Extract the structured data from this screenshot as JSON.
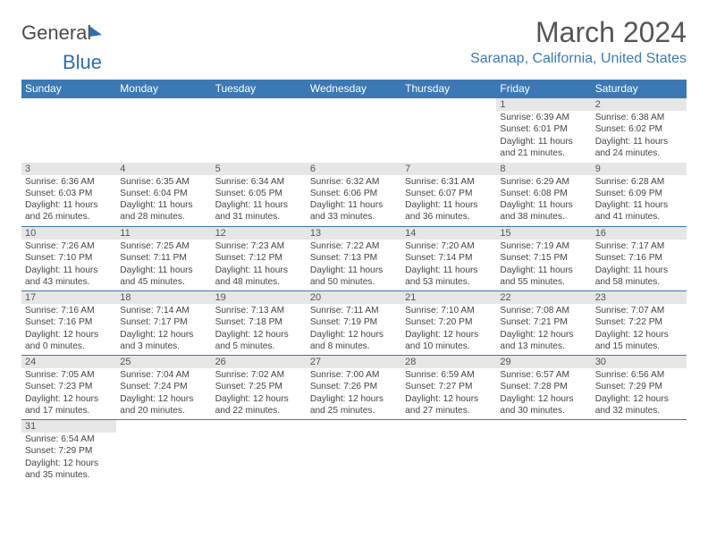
{
  "brand": {
    "part1": "General",
    "part2": "Blue"
  },
  "title": "March 2024",
  "location": "Saranap, California, United States",
  "colors": {
    "header_bg": "#3c79b4",
    "daynum_bg": "#e6e6e6",
    "brand_blue": "#2e6fb0"
  },
  "weekday_headers": [
    "Sunday",
    "Monday",
    "Tuesday",
    "Wednesday",
    "Thursday",
    "Friday",
    "Saturday"
  ],
  "weeks": [
    [
      {
        "blank": true
      },
      {
        "blank": true
      },
      {
        "blank": true
      },
      {
        "blank": true
      },
      {
        "blank": true
      },
      {
        "day": "1",
        "sunrise": "Sunrise: 6:39 AM",
        "sunset": "Sunset: 6:01 PM",
        "day1": "Daylight: 11 hours",
        "day2": "and 21 minutes."
      },
      {
        "day": "2",
        "sunrise": "Sunrise: 6:38 AM",
        "sunset": "Sunset: 6:02 PM",
        "day1": "Daylight: 11 hours",
        "day2": "and 24 minutes."
      }
    ],
    [
      {
        "day": "3",
        "sunrise": "Sunrise: 6:36 AM",
        "sunset": "Sunset: 6:03 PM",
        "day1": "Daylight: 11 hours",
        "day2": "and 26 minutes."
      },
      {
        "day": "4",
        "sunrise": "Sunrise: 6:35 AM",
        "sunset": "Sunset: 6:04 PM",
        "day1": "Daylight: 11 hours",
        "day2": "and 28 minutes."
      },
      {
        "day": "5",
        "sunrise": "Sunrise: 6:34 AM",
        "sunset": "Sunset: 6:05 PM",
        "day1": "Daylight: 11 hours",
        "day2": "and 31 minutes."
      },
      {
        "day": "6",
        "sunrise": "Sunrise: 6:32 AM",
        "sunset": "Sunset: 6:06 PM",
        "day1": "Daylight: 11 hours",
        "day2": "and 33 minutes."
      },
      {
        "day": "7",
        "sunrise": "Sunrise: 6:31 AM",
        "sunset": "Sunset: 6:07 PM",
        "day1": "Daylight: 11 hours",
        "day2": "and 36 minutes."
      },
      {
        "day": "8",
        "sunrise": "Sunrise: 6:29 AM",
        "sunset": "Sunset: 6:08 PM",
        "day1": "Daylight: 11 hours",
        "day2": "and 38 minutes."
      },
      {
        "day": "9",
        "sunrise": "Sunrise: 6:28 AM",
        "sunset": "Sunset: 6:09 PM",
        "day1": "Daylight: 11 hours",
        "day2": "and 41 minutes."
      }
    ],
    [
      {
        "day": "10",
        "sunrise": "Sunrise: 7:26 AM",
        "sunset": "Sunset: 7:10 PM",
        "day1": "Daylight: 11 hours",
        "day2": "and 43 minutes."
      },
      {
        "day": "11",
        "sunrise": "Sunrise: 7:25 AM",
        "sunset": "Sunset: 7:11 PM",
        "day1": "Daylight: 11 hours",
        "day2": "and 45 minutes."
      },
      {
        "day": "12",
        "sunrise": "Sunrise: 7:23 AM",
        "sunset": "Sunset: 7:12 PM",
        "day1": "Daylight: 11 hours",
        "day2": "and 48 minutes."
      },
      {
        "day": "13",
        "sunrise": "Sunrise: 7:22 AM",
        "sunset": "Sunset: 7:13 PM",
        "day1": "Daylight: 11 hours",
        "day2": "and 50 minutes."
      },
      {
        "day": "14",
        "sunrise": "Sunrise: 7:20 AM",
        "sunset": "Sunset: 7:14 PM",
        "day1": "Daylight: 11 hours",
        "day2": "and 53 minutes."
      },
      {
        "day": "15",
        "sunrise": "Sunrise: 7:19 AM",
        "sunset": "Sunset: 7:15 PM",
        "day1": "Daylight: 11 hours",
        "day2": "and 55 minutes."
      },
      {
        "day": "16",
        "sunrise": "Sunrise: 7:17 AM",
        "sunset": "Sunset: 7:16 PM",
        "day1": "Daylight: 11 hours",
        "day2": "and 58 minutes."
      }
    ],
    [
      {
        "day": "17",
        "sunrise": "Sunrise: 7:16 AM",
        "sunset": "Sunset: 7:16 PM",
        "day1": "Daylight: 12 hours",
        "day2": "and 0 minutes."
      },
      {
        "day": "18",
        "sunrise": "Sunrise: 7:14 AM",
        "sunset": "Sunset: 7:17 PM",
        "day1": "Daylight: 12 hours",
        "day2": "and 3 minutes."
      },
      {
        "day": "19",
        "sunrise": "Sunrise: 7:13 AM",
        "sunset": "Sunset: 7:18 PM",
        "day1": "Daylight: 12 hours",
        "day2": "and 5 minutes."
      },
      {
        "day": "20",
        "sunrise": "Sunrise: 7:11 AM",
        "sunset": "Sunset: 7:19 PM",
        "day1": "Daylight: 12 hours",
        "day2": "and 8 minutes."
      },
      {
        "day": "21",
        "sunrise": "Sunrise: 7:10 AM",
        "sunset": "Sunset: 7:20 PM",
        "day1": "Daylight: 12 hours",
        "day2": "and 10 minutes."
      },
      {
        "day": "22",
        "sunrise": "Sunrise: 7:08 AM",
        "sunset": "Sunset: 7:21 PM",
        "day1": "Daylight: 12 hours",
        "day2": "and 13 minutes."
      },
      {
        "day": "23",
        "sunrise": "Sunrise: 7:07 AM",
        "sunset": "Sunset: 7:22 PM",
        "day1": "Daylight: 12 hours",
        "day2": "and 15 minutes."
      }
    ],
    [
      {
        "day": "24",
        "sunrise": "Sunrise: 7:05 AM",
        "sunset": "Sunset: 7:23 PM",
        "day1": "Daylight: 12 hours",
        "day2": "and 17 minutes."
      },
      {
        "day": "25",
        "sunrise": "Sunrise: 7:04 AM",
        "sunset": "Sunset: 7:24 PM",
        "day1": "Daylight: 12 hours",
        "day2": "and 20 minutes."
      },
      {
        "day": "26",
        "sunrise": "Sunrise: 7:02 AM",
        "sunset": "Sunset: 7:25 PM",
        "day1": "Daylight: 12 hours",
        "day2": "and 22 minutes."
      },
      {
        "day": "27",
        "sunrise": "Sunrise: 7:00 AM",
        "sunset": "Sunset: 7:26 PM",
        "day1": "Daylight: 12 hours",
        "day2": "and 25 minutes."
      },
      {
        "day": "28",
        "sunrise": "Sunrise: 6:59 AM",
        "sunset": "Sunset: 7:27 PM",
        "day1": "Daylight: 12 hours",
        "day2": "and 27 minutes."
      },
      {
        "day": "29",
        "sunrise": "Sunrise: 6:57 AM",
        "sunset": "Sunset: 7:28 PM",
        "day1": "Daylight: 12 hours",
        "day2": "and 30 minutes."
      },
      {
        "day": "30",
        "sunrise": "Sunrise: 6:56 AM",
        "sunset": "Sunset: 7:29 PM",
        "day1": "Daylight: 12 hours",
        "day2": "and 32 minutes."
      }
    ],
    [
      {
        "day": "31",
        "sunrise": "Sunrise: 6:54 AM",
        "sunset": "Sunset: 7:29 PM",
        "day1": "Daylight: 12 hours",
        "day2": "and 35 minutes."
      },
      {
        "blank": true
      },
      {
        "blank": true
      },
      {
        "blank": true
      },
      {
        "blank": true
      },
      {
        "blank": true
      },
      {
        "blank": true
      }
    ]
  ]
}
